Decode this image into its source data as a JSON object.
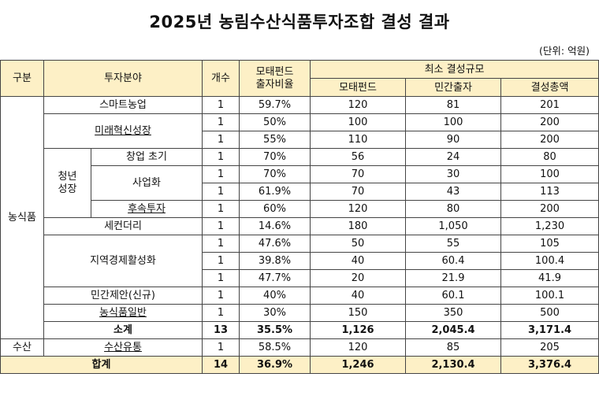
{
  "title": "2025년 농림수산식품투자조합 결성 결과",
  "unit": "(단위: 억원)",
  "header": {
    "category": "구분",
    "field": "투자분야",
    "count": "개수",
    "ratio_line1": "모태펀드",
    "ratio_line2": "출자비율",
    "scale": "최소 결성규모",
    "fund": "모태펀드",
    "private": "민간출자",
    "total": "결성총액"
  },
  "groups": {
    "agri": "농식품",
    "youth_line1": "청년",
    "youth_line2": "성장",
    "fishery": "수산"
  },
  "rows": [
    {
      "field": "스마트농업",
      "count": "1",
      "ratio": "59.7%",
      "fund": "120",
      "private": "81",
      "total": "201"
    },
    {
      "field": "미래혁신성장",
      "count": "1",
      "ratio": "50%",
      "fund": "100",
      "private": "100",
      "total": "200"
    },
    {
      "field": "",
      "count": "1",
      "ratio": "55%",
      "fund": "110",
      "private": "90",
      "total": "200"
    },
    {
      "field": "창업 초기",
      "count": "1",
      "ratio": "70%",
      "fund": "56",
      "private": "24",
      "total": "80"
    },
    {
      "field": "사업화",
      "count": "1",
      "ratio": "70%",
      "fund": "70",
      "private": "30",
      "total": "100"
    },
    {
      "field": "",
      "count": "1",
      "ratio": "61.9%",
      "fund": "70",
      "private": "43",
      "total": "113"
    },
    {
      "field": "후속투자",
      "count": "1",
      "ratio": "60%",
      "fund": "120",
      "private": "80",
      "total": "200"
    },
    {
      "field": "세컨더리",
      "count": "1",
      "ratio": "14.6%",
      "fund": "180",
      "private": "1,050",
      "total": "1,230"
    },
    {
      "field": "지역경제활성화",
      "count": "1",
      "ratio": "47.6%",
      "fund": "50",
      "private": "55",
      "total": "105"
    },
    {
      "field": "",
      "count": "1",
      "ratio": "39.8%",
      "fund": "40",
      "private": "60.4",
      "total": "100.4"
    },
    {
      "field": "",
      "count": "1",
      "ratio": "47.7%",
      "fund": "20",
      "private": "21.9",
      "total": "41.9"
    },
    {
      "field": "민간제안(신규)",
      "count": "1",
      "ratio": "40%",
      "fund": "40",
      "private": "60.1",
      "total": "100.1"
    },
    {
      "field": "농식품일반",
      "count": "1",
      "ratio": "30%",
      "fund": "150",
      "private": "350",
      "total": "500"
    }
  ],
  "subtotal": {
    "label": "소계",
    "count": "13",
    "ratio": "35.5%",
    "fund": "1,126",
    "private": "2,045.4",
    "total": "3,171.4"
  },
  "fishery_row": {
    "field": "수산유통",
    "count": "1",
    "ratio": "58.5%",
    "fund": "120",
    "private": "85",
    "total": "205"
  },
  "grand_total": {
    "label": "합계",
    "count": "14",
    "ratio": "36.9%",
    "fund": "1,246",
    "private": "2,130.4",
    "total": "3,376.4"
  }
}
